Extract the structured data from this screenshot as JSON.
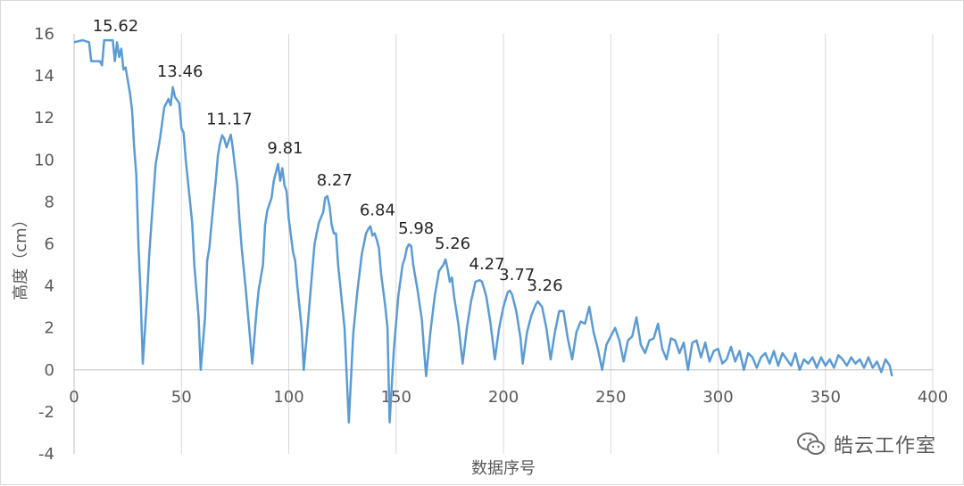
{
  "chart_data": {
    "type": "line",
    "xlabel": "数据序号",
    "ylabel": "高度（cm）",
    "xlim": [
      0,
      400
    ],
    "ylim": [
      -4,
      16
    ],
    "x_ticks": [
      0,
      50,
      100,
      150,
      200,
      250,
      300,
      350,
      400
    ],
    "y_ticks": [
      -4,
      -2,
      0,
      2,
      4,
      6,
      8,
      10,
      12,
      14,
      16
    ],
    "grid": "vertical",
    "line_color": "#5b9bd5",
    "points": [
      [
        0,
        15.6
      ],
      [
        4,
        15.7
      ],
      [
        7,
        15.6
      ],
      [
        8,
        14.7
      ],
      [
        12,
        14.7
      ],
      [
        13,
        14.5
      ],
      [
        14,
        15.7
      ],
      [
        18,
        15.7
      ],
      [
        19,
        14.7
      ],
      [
        20,
        15.6
      ],
      [
        21,
        14.9
      ],
      [
        22,
        15.3
      ],
      [
        23,
        14.3
      ],
      [
        24,
        14.4
      ],
      [
        26,
        13.2
      ],
      [
        27,
        12.4
      ],
      [
        28,
        10.6
      ],
      [
        29,
        9.3
      ],
      [
        30,
        6.0
      ],
      [
        31,
        3.5
      ],
      [
        32,
        0.3
      ],
      [
        34,
        3.5
      ],
      [
        35,
        5.5
      ],
      [
        37,
        8.4
      ],
      [
        38,
        9.8
      ],
      [
        40,
        11.0
      ],
      [
        42,
        12.5
      ],
      [
        44,
        12.9
      ],
      [
        45,
        12.6
      ],
      [
        46,
        13.46
      ],
      [
        47,
        13.0
      ],
      [
        49,
        12.7
      ],
      [
        50,
        11.5
      ],
      [
        51,
        11.3
      ],
      [
        52,
        10.0
      ],
      [
        53,
        9.0
      ],
      [
        55,
        7.0
      ],
      [
        56,
        5.0
      ],
      [
        58,
        2.5
      ],
      [
        59,
        0.0
      ],
      [
        61,
        2.5
      ],
      [
        62,
        5.2
      ],
      [
        63,
        5.8
      ],
      [
        65,
        8.0
      ],
      [
        66,
        9.0
      ],
      [
        67,
        10.2
      ],
      [
        68,
        10.8
      ],
      [
        69,
        11.17
      ],
      [
        70,
        11.0
      ],
      [
        71,
        10.6
      ],
      [
        73,
        11.2
      ],
      [
        74,
        10.5
      ],
      [
        75,
        9.6
      ],
      [
        76,
        8.8
      ],
      [
        77,
        7.2
      ],
      [
        78,
        5.9
      ],
      [
        80,
        3.8
      ],
      [
        82,
        1.5
      ],
      [
        83,
        0.3
      ],
      [
        85,
        2.8
      ],
      [
        86,
        3.8
      ],
      [
        88,
        5.0
      ],
      [
        89,
        6.9
      ],
      [
        90,
        7.6
      ],
      [
        92,
        8.2
      ],
      [
        93,
        9.0
      ],
      [
        94,
        9.4
      ],
      [
        95,
        9.81
      ],
      [
        96,
        9.0
      ],
      [
        97,
        9.6
      ],
      [
        98,
        8.8
      ],
      [
        99,
        8.5
      ],
      [
        100,
        7.2
      ],
      [
        102,
        5.6
      ],
      [
        103,
        5.2
      ],
      [
        104,
        4.0
      ],
      [
        106,
        2.0
      ],
      [
        107,
        0.0
      ],
      [
        109,
        2.3
      ],
      [
        111,
        4.8
      ],
      [
        112,
        6.0
      ],
      [
        114,
        7.0
      ],
      [
        116,
        7.5
      ],
      [
        117,
        8.2
      ],
      [
        118,
        8.27
      ],
      [
        119,
        7.8
      ],
      [
        120,
        6.9
      ],
      [
        121,
        6.5
      ],
      [
        122,
        6.5
      ],
      [
        123,
        5.0
      ],
      [
        124,
        4.0
      ],
      [
        126,
        2.0
      ],
      [
        128,
        -2.5
      ],
      [
        130,
        1.7
      ],
      [
        132,
        3.8
      ],
      [
        134,
        5.5
      ],
      [
        136,
        6.5
      ],
      [
        137,
        6.7
      ],
      [
        138,
        6.84
      ],
      [
        139,
        6.4
      ],
      [
        140,
        6.5
      ],
      [
        141,
        6.2
      ],
      [
        142,
        5.8
      ],
      [
        143,
        4.6
      ],
      [
        145,
        3.0
      ],
      [
        146,
        2.0
      ],
      [
        147,
        -2.5
      ],
      [
        149,
        1.0
      ],
      [
        151,
        3.5
      ],
      [
        153,
        5.0
      ],
      [
        154,
        5.3
      ],
      [
        155,
        5.8
      ],
      [
        156,
        5.98
      ],
      [
        157,
        5.9
      ],
      [
        158,
        5.0
      ],
      [
        160,
        3.8
      ],
      [
        162,
        2.4
      ],
      [
        163,
        1.0
      ],
      [
        164,
        -0.3
      ],
      [
        166,
        1.8
      ],
      [
        168,
        3.5
      ],
      [
        170,
        4.7
      ],
      [
        172,
        5.0
      ],
      [
        173,
        5.26
      ],
      [
        174,
        4.8
      ],
      [
        175,
        4.2
      ],
      [
        176,
        4.4
      ],
      [
        177,
        3.5
      ],
      [
        179,
        2.2
      ],
      [
        181,
        0.3
      ],
      [
        183,
        2.0
      ],
      [
        185,
        3.3
      ],
      [
        187,
        4.2
      ],
      [
        189,
        4.27
      ],
      [
        190,
        4.2
      ],
      [
        192,
        3.5
      ],
      [
        194,
        2.2
      ],
      [
        196,
        0.5
      ],
      [
        198,
        2.0
      ],
      [
        200,
        3.0
      ],
      [
        202,
        3.7
      ],
      [
        203,
        3.77
      ],
      [
        204,
        3.6
      ],
      [
        206,
        2.8
      ],
      [
        208,
        1.5
      ],
      [
        209,
        0.3
      ],
      [
        211,
        1.8
      ],
      [
        213,
        2.6
      ],
      [
        215,
        3.1
      ],
      [
        216,
        3.26
      ],
      [
        218,
        3.0
      ],
      [
        220,
        2.0
      ],
      [
        222,
        0.5
      ],
      [
        224,
        1.8
      ],
      [
        226,
        2.8
      ],
      [
        228,
        2.8
      ],
      [
        230,
        1.5
      ],
      [
        232,
        0.5
      ],
      [
        234,
        1.8
      ],
      [
        236,
        2.3
      ],
      [
        238,
        2.2
      ],
      [
        240,
        3.0
      ],
      [
        242,
        1.8
      ],
      [
        244,
        1.0
      ],
      [
        246,
        0.0
      ],
      [
        248,
        1.2
      ],
      [
        250,
        1.6
      ],
      [
        252,
        2.0
      ],
      [
        254,
        1.4
      ],
      [
        256,
        0.4
      ],
      [
        258,
        1.4
      ],
      [
        260,
        1.6
      ],
      [
        262,
        2.5
      ],
      [
        264,
        1.2
      ],
      [
        266,
        0.8
      ],
      [
        268,
        1.4
      ],
      [
        270,
        1.5
      ],
      [
        272,
        2.2
      ],
      [
        274,
        1.0
      ],
      [
        276,
        0.5
      ],
      [
        278,
        1.5
      ],
      [
        280,
        1.4
      ],
      [
        282,
        0.8
      ],
      [
        284,
        1.3
      ],
      [
        286,
        0.0
      ],
      [
        288,
        1.3
      ],
      [
        290,
        1.4
      ],
      [
        292,
        0.6
      ],
      [
        294,
        1.3
      ],
      [
        296,
        0.4
      ],
      [
        298,
        0.9
      ],
      [
        300,
        1.0
      ],
      [
        302,
        0.3
      ],
      [
        304,
        0.5
      ],
      [
        306,
        1.1
      ],
      [
        308,
        0.4
      ],
      [
        310,
        0.9
      ],
      [
        312,
        0.0
      ],
      [
        314,
        0.8
      ],
      [
        316,
        0.6
      ],
      [
        318,
        0.1
      ],
      [
        320,
        0.6
      ],
      [
        322,
        0.8
      ],
      [
        324,
        0.3
      ],
      [
        326,
        0.9
      ],
      [
        328,
        0.2
      ],
      [
        330,
        0.8
      ],
      [
        332,
        0.5
      ],
      [
        334,
        0.2
      ],
      [
        336,
        0.8
      ],
      [
        338,
        0.0
      ],
      [
        340,
        0.5
      ],
      [
        342,
        0.3
      ],
      [
        344,
        0.6
      ],
      [
        346,
        0.1
      ],
      [
        348,
        0.6
      ],
      [
        350,
        0.2
      ],
      [
        352,
        0.5
      ],
      [
        354,
        0.1
      ],
      [
        356,
        0.7
      ],
      [
        358,
        0.5
      ],
      [
        360,
        0.2
      ],
      [
        362,
        0.6
      ],
      [
        364,
        0.3
      ],
      [
        366,
        0.5
      ],
      [
        368,
        0.1
      ],
      [
        370,
        0.6
      ],
      [
        372,
        0.1
      ],
      [
        374,
        0.4
      ],
      [
        376,
        -0.1
      ],
      [
        378,
        0.5
      ],
      [
        380,
        0.2
      ],
      [
        381,
        -0.3
      ]
    ],
    "peak_labels": [
      {
        "x": 16,
        "y": 15.62,
        "text": "15.62"
      },
      {
        "x": 46,
        "y": 13.46,
        "text": "13.46"
      },
      {
        "x": 69,
        "y": 11.17,
        "text": "11.17"
      },
      {
        "x": 95,
        "y": 9.81,
        "text": "9.81"
      },
      {
        "x": 118,
        "y": 8.27,
        "text": "8.27"
      },
      {
        "x": 138,
        "y": 6.84,
        "text": "6.84"
      },
      {
        "x": 156,
        "y": 5.98,
        "text": "5.98"
      },
      {
        "x": 173,
        "y": 5.26,
        "text": "5.26"
      },
      {
        "x": 189,
        "y": 4.27,
        "text": "4.27"
      },
      {
        "x": 203,
        "y": 3.77,
        "text": "3.77"
      },
      {
        "x": 216,
        "y": 3.26,
        "text": "3.26"
      }
    ]
  },
  "watermark": {
    "text": "皓云工作室",
    "icon": "wechat-icon"
  }
}
